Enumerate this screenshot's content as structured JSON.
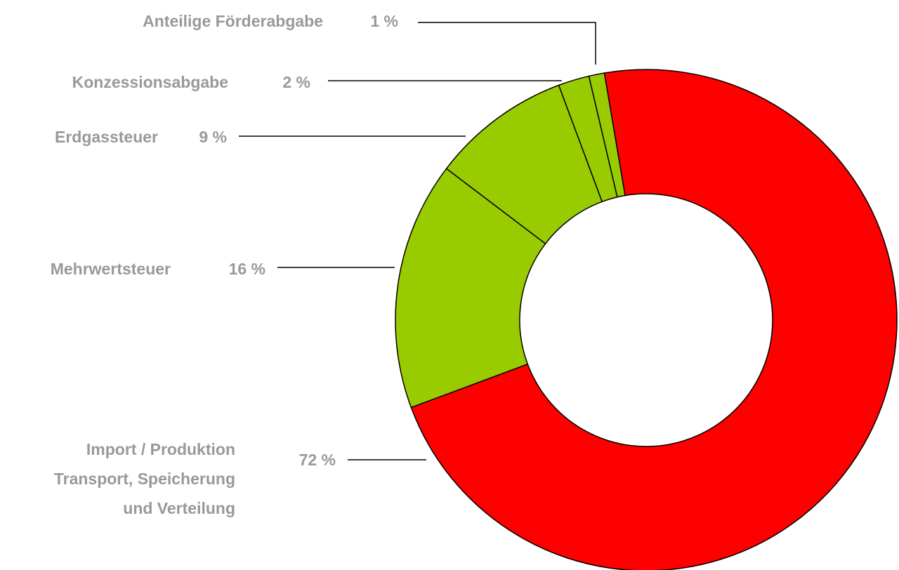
{
  "chart_data": {
    "type": "donut",
    "categories": [
      "Import / Produktion\nTransport, Speicherung\nund Verteilung",
      "Mehrwertsteuer",
      "Erdgassteuer",
      "Konzessionsabgabe",
      "Anteilige Förderabgabe"
    ],
    "values": [
      72,
      16,
      9,
      2,
      1
    ],
    "value_labels": [
      "72 %",
      "16 %",
      "9 %",
      "2 %",
      "1 %"
    ],
    "colors": [
      "#ff0000",
      "#99cc00",
      "#99cc00",
      "#99cc00",
      "#99cc00"
    ]
  }
}
